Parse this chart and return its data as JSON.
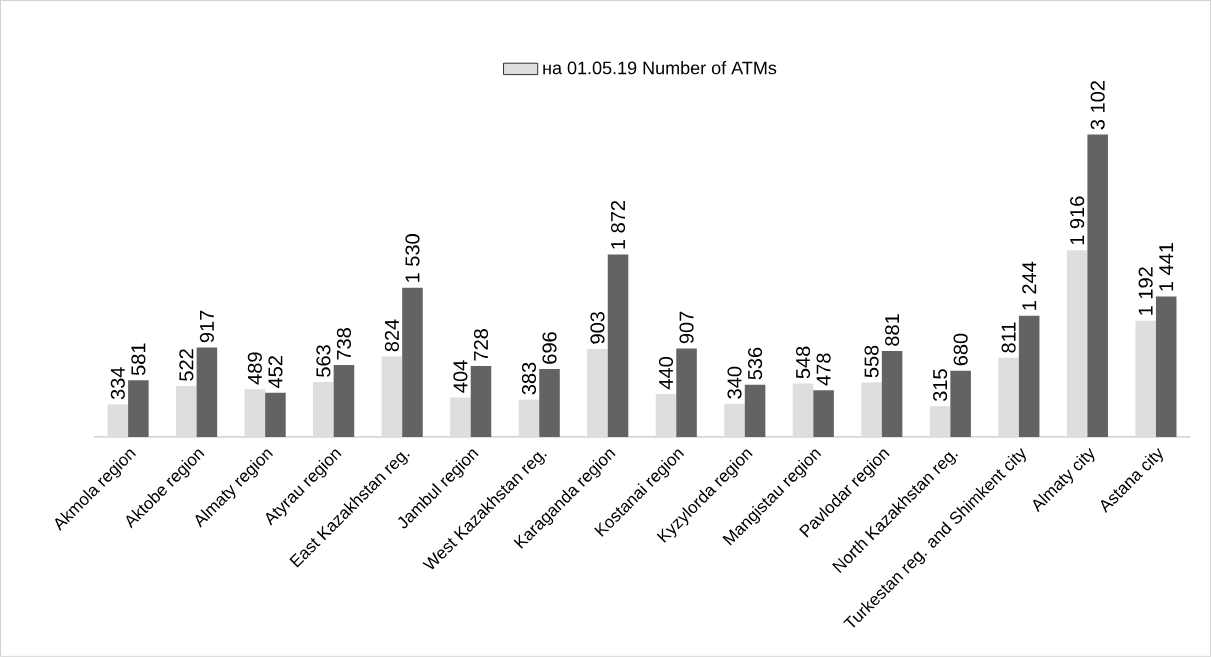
{
  "chart_data": {
    "type": "bar",
    "categories": [
      "Akmola region",
      "Aktobe region",
      "Almaty region",
      "Atyrau region",
      "East Kazakhstan reg.",
      "Jambul region",
      "West Kazakhstan reg.",
      "Karaganda region",
      "Kostanai region",
      "Kyzylorda region",
      "Mangistau region",
      "Pavlodar region",
      "North Kazakhstan reg.",
      "Turkestan reg. and Shimkent city",
      "Almaty city",
      "Astana city"
    ],
    "series": [
      {
        "name": "на 01.05.19 Number of ATMs",
        "color": "#dedede",
        "values": [
          334,
          522,
          489,
          563,
          824,
          404,
          383,
          903,
          440,
          340,
          548,
          558,
          315,
          811,
          1916,
          1192
        ],
        "value_labels": [
          "334",
          "522",
          "489",
          "563",
          "824",
          "404",
          "383",
          "903",
          "440",
          "340",
          "548",
          "558",
          "315",
          "811",
          "1 916",
          "1 192"
        ]
      },
      {
        "color": "#636363",
        "values": [
          581,
          917,
          452,
          738,
          1530,
          728,
          696,
          1872,
          907,
          536,
          478,
          881,
          680,
          1244,
          3102,
          1441
        ],
        "value_labels": [
          "581",
          "917",
          "452",
          "738",
          "1 530",
          "728",
          "696",
          "1 872",
          "907",
          "536",
          "478",
          "881",
          "680",
          "1 244",
          "3 102",
          "1 441"
        ]
      }
    ],
    "legend": "top"
  }
}
